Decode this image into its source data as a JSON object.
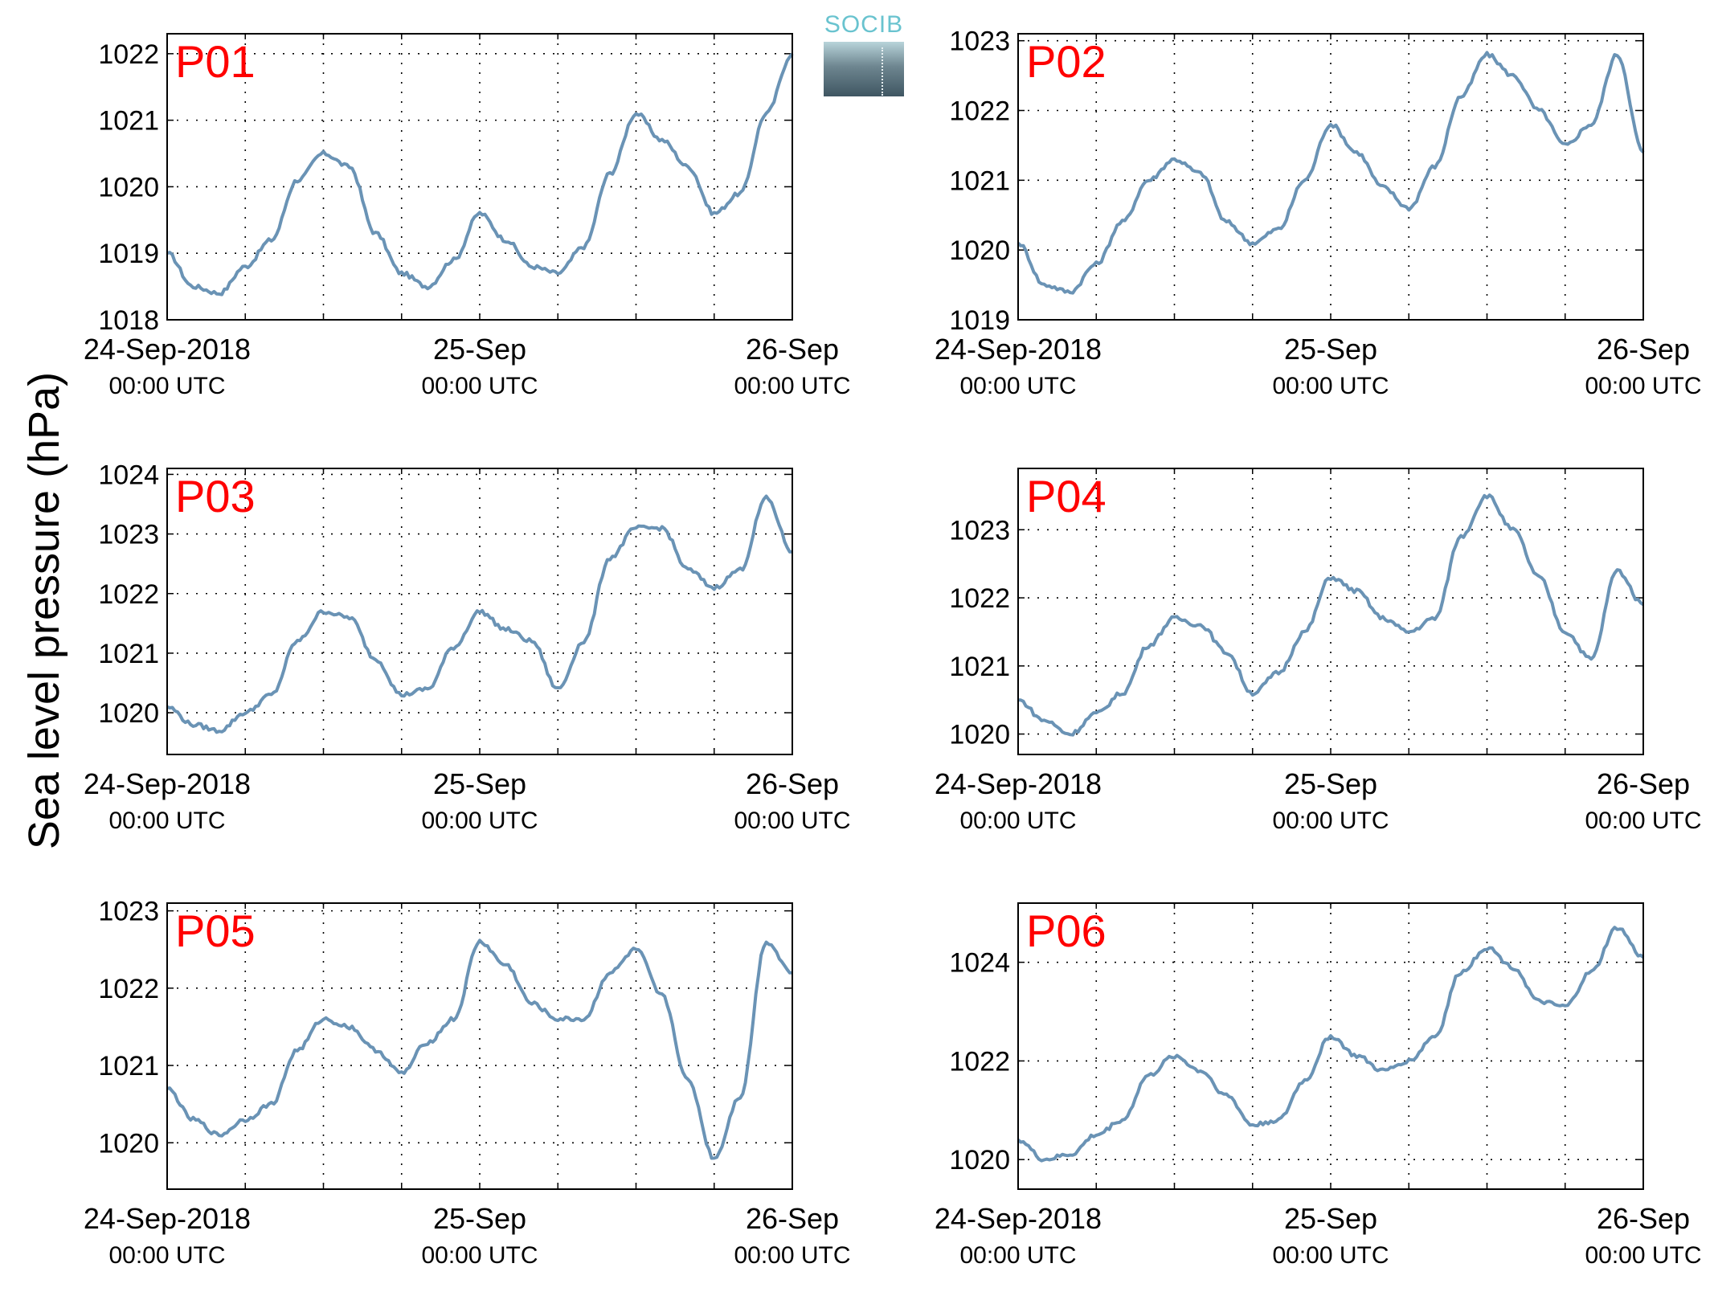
{
  "figure": {
    "ylabel": "Sea level pressure (hPa)",
    "logo_text": "SOCIB",
    "line_color": "#6a93b5",
    "label_color": "#ff0000"
  },
  "chart_data": [
    {
      "type": "line",
      "title": "P01",
      "xlabel": "",
      "ylabel": "Sea level pressure (hPa)",
      "xlim": [
        "24-Sep-2018 00:00",
        "26-Sep-2018 00:00"
      ],
      "ylim": [
        1018,
        1022.3
      ],
      "yticks": [
        1018,
        1019,
        1020,
        1021,
        1022
      ],
      "xtick_labels": [
        {
          "date": "24-Sep-2018",
          "time": "00:00 UTC"
        },
        {
          "date": "25-Sep",
          "time": "00:00 UTC"
        },
        {
          "date": "26-Sep",
          "time": "00:00 UTC"
        }
      ],
      "grid": true,
      "x_hours": [
        0,
        2,
        4,
        6,
        8,
        10,
        12,
        14,
        16,
        18,
        20,
        22,
        24,
        26,
        28,
        30,
        32,
        34,
        36,
        38,
        40,
        42,
        44,
        46,
        48
      ],
      "y": [
        1019.0,
        1018.5,
        1018.4,
        1018.8,
        1019.2,
        1020.1,
        1020.5,
        1020.3,
        1019.3,
        1018.7,
        1018.5,
        1018.9,
        1019.6,
        1019.2,
        1018.8,
        1018.7,
        1019.1,
        1020.2,
        1021.1,
        1020.7,
        1020.3,
        1019.6,
        1019.9,
        1021.1,
        1022.0
      ]
    },
    {
      "type": "line",
      "title": "P02",
      "xlabel": "",
      "ylabel": "Sea level pressure (hPa)",
      "xlim": [
        "24-Sep-2018 00:00",
        "26-Sep-2018 00:00"
      ],
      "ylim": [
        1019,
        1023.1
      ],
      "yticks": [
        1019,
        1020,
        1021,
        1022,
        1023
      ],
      "xtick_labels": [
        {
          "date": "24-Sep-2018",
          "time": "00:00 UTC"
        },
        {
          "date": "25-Sep",
          "time": "00:00 UTC"
        },
        {
          "date": "26-Sep",
          "time": "00:00 UTC"
        }
      ],
      "grid": true,
      "x_hours": [
        0,
        2,
        4,
        6,
        8,
        10,
        12,
        14,
        16,
        18,
        20,
        22,
        24,
        26,
        28,
        30,
        32,
        34,
        36,
        38,
        40,
        42,
        44,
        46,
        48
      ],
      "y": [
        1020.1,
        1019.5,
        1019.4,
        1019.8,
        1020.4,
        1021.0,
        1021.3,
        1021.1,
        1020.4,
        1020.1,
        1020.3,
        1021.0,
        1021.8,
        1021.4,
        1020.9,
        1020.6,
        1021.2,
        1022.2,
        1022.8,
        1022.5,
        1022.0,
        1021.5,
        1021.8,
        1022.8,
        1021.4
      ]
    },
    {
      "type": "line",
      "title": "P03",
      "xlabel": "",
      "ylabel": "Sea level pressure (hPa)",
      "xlim": [
        "24-Sep-2018 00:00",
        "26-Sep-2018 00:00"
      ],
      "ylim": [
        1019.3,
        1024.1
      ],
      "yticks": [
        1020,
        1021,
        1022,
        1023,
        1024
      ],
      "xtick_labels": [
        {
          "date": "24-Sep-2018",
          "time": "00:00 UTC"
        },
        {
          "date": "25-Sep",
          "time": "00:00 UTC"
        },
        {
          "date": "26-Sep",
          "time": "00:00 UTC"
        }
      ],
      "grid": true,
      "x_hours": [
        0,
        2,
        4,
        6,
        8,
        10,
        12,
        14,
        16,
        18,
        20,
        22,
        24,
        26,
        28,
        30,
        32,
        34,
        36,
        38,
        40,
        42,
        44,
        46,
        48
      ],
      "y": [
        1020.1,
        1019.8,
        1019.7,
        1020.0,
        1020.3,
        1021.2,
        1021.7,
        1021.6,
        1020.9,
        1020.3,
        1020.4,
        1021.1,
        1021.7,
        1021.4,
        1021.2,
        1020.4,
        1021.2,
        1022.6,
        1023.1,
        1023.1,
        1022.4,
        1022.1,
        1022.4,
        1023.6,
        1022.7
      ]
    },
    {
      "type": "line",
      "title": "P04",
      "xlabel": "",
      "ylabel": "Sea level pressure (hPa)",
      "xlim": [
        "24-Sep-2018 00:00",
        "26-Sep-2018 00:00"
      ],
      "ylim": [
        1019.7,
        1023.9
      ],
      "yticks": [
        1020,
        1021,
        1022,
        1023
      ],
      "xtick_labels": [
        {
          "date": "24-Sep-2018",
          "time": "00:00 UTC"
        },
        {
          "date": "25-Sep",
          "time": "00:00 UTC"
        },
        {
          "date": "26-Sep",
          "time": "00:00 UTC"
        }
      ],
      "grid": true,
      "x_hours": [
        0,
        2,
        4,
        6,
        8,
        10,
        12,
        14,
        16,
        18,
        20,
        22,
        24,
        26,
        28,
        30,
        32,
        34,
        36,
        38,
        40,
        42,
        44,
        46,
        48
      ],
      "y": [
        1020.5,
        1020.2,
        1020.0,
        1020.3,
        1020.6,
        1021.3,
        1021.7,
        1021.6,
        1021.2,
        1020.6,
        1020.9,
        1021.5,
        1022.3,
        1022.1,
        1021.7,
        1021.5,
        1021.7,
        1022.9,
        1023.5,
        1023.0,
        1022.3,
        1021.5,
        1021.1,
        1022.4,
        1021.9
      ]
    },
    {
      "type": "line",
      "title": "P05",
      "xlabel": "",
      "ylabel": "Sea level pressure (hPa)",
      "xlim": [
        "24-Sep-2018 00:00",
        "26-Sep-2018 00:00"
      ],
      "ylim": [
        1019.4,
        1023.1
      ],
      "yticks": [
        1020,
        1021,
        1022,
        1023
      ],
      "xtick_labels": [
        {
          "date": "24-Sep-2018",
          "time": "00:00 UTC"
        },
        {
          "date": "25-Sep",
          "time": "00:00 UTC"
        },
        {
          "date": "26-Sep",
          "time": "00:00 UTC"
        }
      ],
      "grid": true,
      "x_hours": [
        0,
        2,
        4,
        6,
        8,
        10,
        12,
        14,
        16,
        18,
        20,
        22,
        24,
        26,
        28,
        30,
        32,
        34,
        36,
        38,
        40,
        42,
        44,
        46,
        48
      ],
      "y": [
        1020.7,
        1020.3,
        1020.1,
        1020.3,
        1020.5,
        1021.2,
        1021.6,
        1021.5,
        1021.2,
        1020.9,
        1021.3,
        1021.6,
        1022.6,
        1022.3,
        1021.8,
        1021.6,
        1021.6,
        1022.2,
        1022.5,
        1021.9,
        1020.8,
        1019.8,
        1020.6,
        1022.6,
        1022.2
      ]
    },
    {
      "type": "line",
      "title": "P06",
      "xlabel": "",
      "ylabel": "Sea level pressure (hPa)",
      "xlim": [
        "24-Sep-2018 00:00",
        "26-Sep-2018 00:00"
      ],
      "ylim": [
        1019.4,
        1025.2
      ],
      "yticks": [
        1020,
        1022,
        1024
      ],
      "xtick_labels": [
        {
          "date": "24-Sep-2018",
          "time": "00:00 UTC"
        },
        {
          "date": "25-Sep",
          "time": "00:00 UTC"
        },
        {
          "date": "26-Sep",
          "time": "00:00 UTC"
        }
      ],
      "grid": true,
      "x_hours": [
        0,
        2,
        4,
        6,
        8,
        10,
        12,
        14,
        16,
        18,
        20,
        22,
        24,
        26,
        28,
        30,
        32,
        34,
        36,
        38,
        40,
        42,
        44,
        46,
        48
      ],
      "y": [
        1020.4,
        1020.0,
        1020.1,
        1020.5,
        1020.8,
        1021.7,
        1022.1,
        1021.8,
        1021.3,
        1020.7,
        1020.8,
        1021.6,
        1022.5,
        1022.1,
        1021.8,
        1022.0,
        1022.5,
        1023.8,
        1024.3,
        1023.9,
        1023.2,
        1023.1,
        1023.8,
        1024.7,
        1024.1
      ]
    }
  ]
}
